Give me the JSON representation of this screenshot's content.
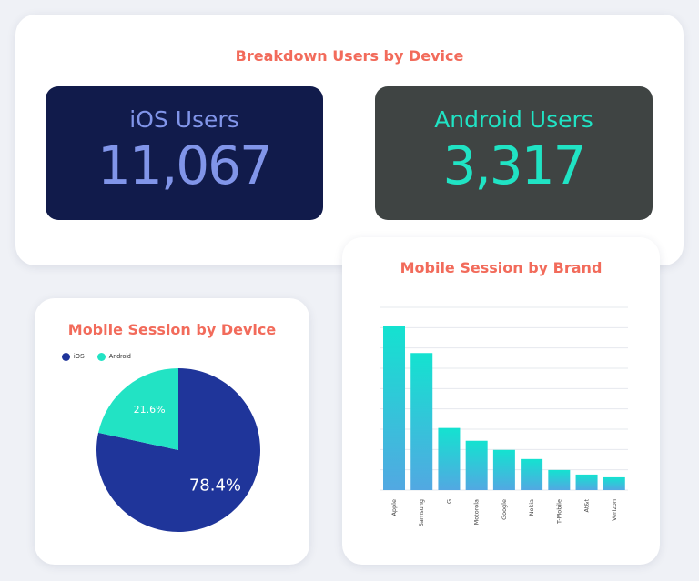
{
  "breakdown": {
    "title": "Breakdown Users by Device",
    "ios": {
      "label": "iOS Users",
      "value": "11,067"
    },
    "android": {
      "label": "Android Users",
      "value": "3,317"
    }
  },
  "colors": {
    "ios_card_bg": "#111b4b",
    "ios_text": "#8195e9",
    "android_card_bg": "#3f4443",
    "android_text": "#20e3c4",
    "title": "#f26b5b",
    "pie_ios": "#1f359a",
    "pie_android": "#22e3c4",
    "bar_top": "#14e2d0",
    "bar_bottom": "#52a8e2"
  },
  "chart_data": [
    {
      "type": "pie",
      "title": "Mobile Session by Device",
      "legend": [
        "iOS",
        "Android"
      ],
      "legend_position": "top-left",
      "slices": [
        {
          "name": "iOS",
          "value": 78.4,
          "label": "78.4%"
        },
        {
          "name": "Android",
          "value": 21.6,
          "label": "21.6%"
        }
      ]
    },
    {
      "type": "bar",
      "title": "Mobile Session by Brand",
      "categories": [
        "Apple",
        "Samsung",
        "LG",
        "Motorola",
        "Google",
        "Nokia",
        "T-Mobile",
        "At&t",
        "Verizon"
      ],
      "values": [
        90,
        75,
        34,
        27,
        22,
        17,
        11,
        8.5,
        7
      ],
      "ylim": [
        0,
        100
      ],
      "grid": true,
      "xlabel": "",
      "ylabel": ""
    }
  ]
}
